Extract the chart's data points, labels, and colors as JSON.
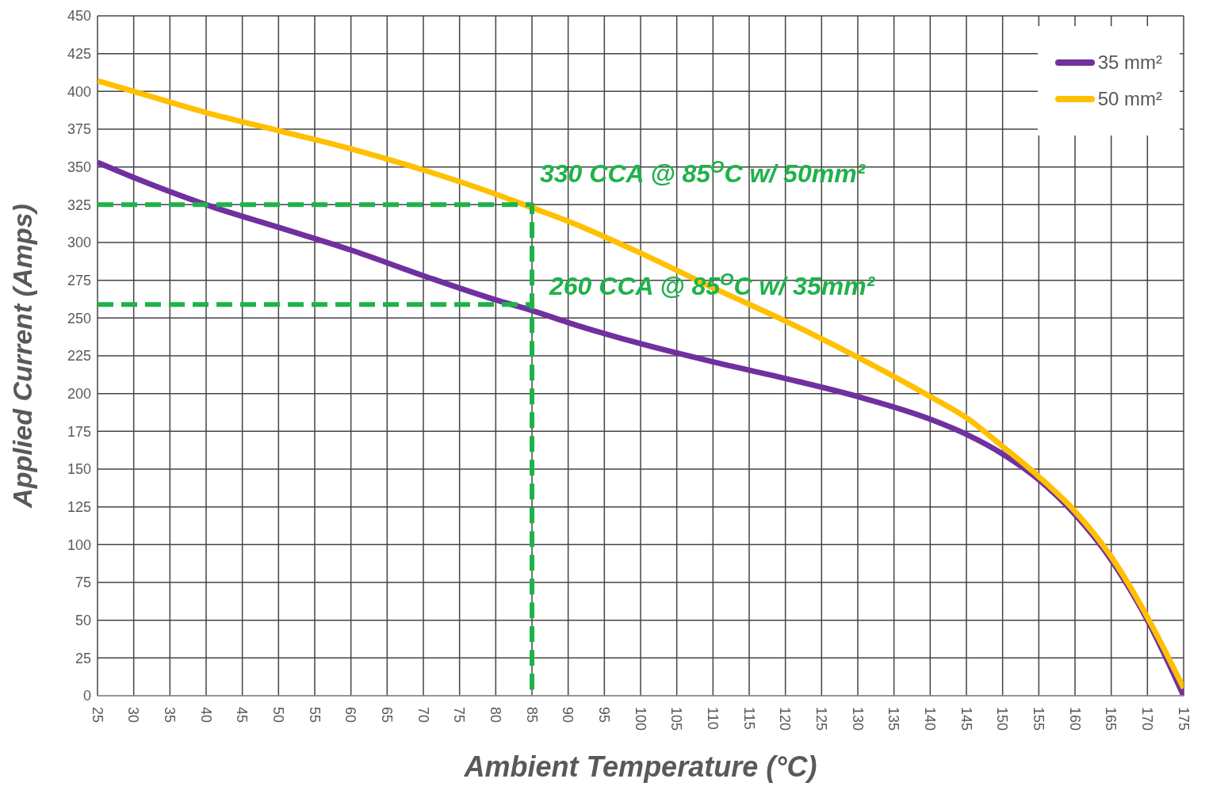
{
  "chart_data": {
    "type": "line",
    "xlabel": "Ambient Temperature (°C)",
    "ylabel": "Applied Current (Amps)",
    "xlim": [
      25,
      175
    ],
    "xticks": [
      25,
      30,
      35,
      40,
      45,
      50,
      55,
      60,
      65,
      70,
      75,
      80,
      85,
      90,
      95,
      100,
      105,
      110,
      115,
      120,
      125,
      130,
      135,
      140,
      145,
      150,
      155,
      160,
      165,
      170,
      175
    ],
    "ylim": [
      0,
      450
    ],
    "yticks": [
      0,
      25,
      50,
      75,
      100,
      125,
      150,
      175,
      200,
      225,
      250,
      275,
      300,
      325,
      350,
      375,
      400,
      425,
      450
    ],
    "grid": true,
    "legend": "top right",
    "marker": "none",
    "line_style": "solid",
    "series": [
      {
        "name": "35 mm²",
        "color": "#7030a0",
        "x": [
          25,
          30,
          40,
          50,
          60,
          70,
          80,
          85,
          90,
          100,
          110,
          120,
          130,
          140,
          145,
          150,
          155,
          160,
          165,
          170,
          175
        ],
        "values": [
          353,
          343,
          325,
          310,
          295,
          278,
          262,
          255,
          247,
          233,
          221,
          210,
          198,
          183,
          173,
          160,
          143,
          120,
          90,
          50,
          0
        ]
      },
      {
        "name": "50 mm²",
        "color": "#ffc000",
        "x": [
          25,
          30,
          40,
          50,
          60,
          70,
          80,
          85,
          90,
          100,
          110,
          120,
          130,
          140,
          145,
          150,
          155,
          160,
          165,
          170,
          175
        ],
        "values": [
          407,
          400,
          386,
          374,
          362,
          348,
          332,
          323,
          314,
          293,
          270,
          248,
          224,
          198,
          184,
          165,
          145,
          122,
          92,
          52,
          5
        ]
      },
      {
        "color": "#1fb24a",
        "line_style": "dashed",
        "x": [
          25,
          85,
          85
        ],
        "values": [
          325,
          325,
          0
        ]
      },
      {
        "color": "#1fb24a",
        "line_style": "dashed",
        "x": [
          25,
          85
        ],
        "values": [
          259,
          259
        ]
      }
    ],
    "annotations": [
      {
        "text": "330 CCA @ 85$^{O}$C w/ 50mm²",
        "x": 85,
        "y": 325
      },
      {
        "text": "260 CCA @ 85$^{O}$C w/ 35mm²",
        "x": 85,
        "y": 259
      }
    ]
  }
}
